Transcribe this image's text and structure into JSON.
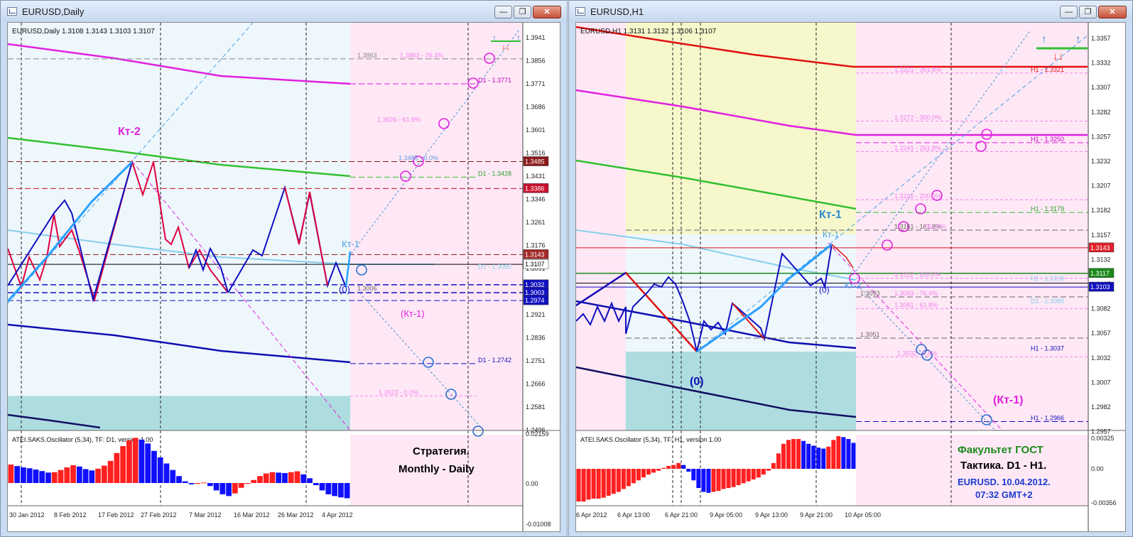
{
  "left": {
    "window_title": "EURUSD,Daily",
    "header": "EURUSD,Daily  1.3108 1.3143 1.3103 1.3107",
    "price_labels": [
      "1.3941",
      "1.3856",
      "1.3771",
      "1.3686",
      "1.3601",
      "1.3516",
      "1.3431",
      "1.3346",
      "1.3261",
      "1.3176",
      "1.3091",
      "1.3006",
      "1.2921",
      "1.2836",
      "1.2751",
      "1.2666",
      "1.2581",
      "1.2496"
    ],
    "price_tags": [
      {
        "text": "1.3485",
        "price": 1.3485,
        "color": "#8b1a1a"
      },
      {
        "text": "1.3386",
        "price": 1.3386,
        "color": "#c8102e"
      },
      {
        "text": "1.3143",
        "price": 1.3143,
        "color": "#a52a2a"
      },
      {
        "text": "1.3107",
        "price": 1.3107,
        "color": "#ffffff"
      },
      {
        "text": "1.3032",
        "price": 1.3032,
        "color": "#1010c0"
      },
      {
        "text": "1.3003",
        "price": 1.3003,
        "color": "#1010c0"
      },
      {
        "text": "1.2974",
        "price": 1.2974,
        "color": "#1010c0"
      }
    ],
    "level_texts": [
      {
        "text": "1.3863",
        "price": 1.3863,
        "color": "#888888"
      },
      {
        "text": "1.3863 - 76.4%",
        "price": 1.3863,
        "color": "#ee82ee"
      },
      {
        "text": "D1 - 1.3771",
        "price": 1.3771,
        "color": "#c000c0"
      },
      {
        "text": "1.3626 - 61.8%",
        "price": 1.3626,
        "color": "#ee82ee"
      },
      {
        "text": "1.3485 - 0.0%",
        "price": 1.3485,
        "color": "#5aa0e0"
      },
      {
        "text": "D1 - 1.3428",
        "price": 1.3428,
        "color": "#2ca02c"
      },
      {
        "text": "D1 - 1.3085",
        "price": 1.3085,
        "color": "#87ceeb"
      },
      {
        "text": "1.3006",
        "price": 1.3006,
        "color": "#666666"
      },
      {
        "text": "D1 - 1.2742",
        "price": 1.2742,
        "color": "#1010c0"
      },
      {
        "text": "1.2623 - 0.0%",
        "price": 1.2623,
        "color": "#ee82ee"
      }
    ],
    "annotations": [
      {
        "text": "Кт-2",
        "color": "#e020e0"
      },
      {
        "text": "Кт-1",
        "color": "#4aa0e0"
      },
      {
        "text": "(0)",
        "color": "#1010c0"
      },
      {
        "text": "(Кт-1)",
        "color": "#e020e0"
      }
    ],
    "time_labels": [
      "30 Jan 2012",
      "8 Feb 2012",
      "17 Feb 2012",
      "27 Feb 2012",
      "7 Mar 2012",
      "16 Mar 2012",
      "26 Mar 2012",
      "4 Apr 2012"
    ],
    "osc": {
      "title": "ATEI.SAKS.Oscillator (5,34), TF: D1, version 1.00",
      "labels": [
        "0.02159",
        "0.00",
        "-0.01008"
      ],
      "values": [
        0.0085,
        0.0078,
        0.0072,
        0.0068,
        0.0062,
        0.0055,
        0.0048,
        0.005,
        0.006,
        0.0072,
        0.0082,
        0.0076,
        0.0064,
        0.0058,
        0.0066,
        0.008,
        0.0102,
        0.0138,
        0.017,
        0.0196,
        0.0208,
        0.02,
        0.0182,
        0.0148,
        0.0118,
        0.009,
        0.006,
        0.0032,
        0.0008,
        -0.0006,
        -0.0004,
        0.0002,
        -0.0014,
        -0.0034,
        -0.0052,
        -0.006,
        -0.0048,
        -0.0022,
        -0.0004,
        0.0014,
        0.0032,
        0.0044,
        0.005,
        0.0048,
        0.0046,
        0.005,
        0.0054,
        0.004,
        0.0022,
        -0.001,
        -0.0034,
        -0.0052,
        -0.006,
        -0.0066,
        -0.007
      ]
    },
    "caption": [
      "Стратегия.",
      "Monthly - Daily"
    ],
    "markers": [
      "↑",
      "↓↓",
      "↑"
    ]
  },
  "right": {
    "window_title": "EURUSD,H1",
    "header": "EURUSD,H1  1.3131 1.3132 1.3106 1.3107",
    "price_labels": [
      "1.3357",
      "1.3332",
      "1.3307",
      "1.3282",
      "1.3257",
      "1.3232",
      "1.3207",
      "1.3182",
      "1.3157",
      "1.3132",
      "1.3107",
      "1.3082",
      "1.3057",
      "1.3032",
      "1.3007",
      "1.2982",
      "1.2957"
    ],
    "price_tags": [
      {
        "text": "1.3143",
        "price": 1.3143,
        "color": "#e0202a"
      },
      {
        "text": "1.3117",
        "price": 1.3117,
        "color": "#1a8a1a"
      },
      {
        "text": "1.3103",
        "price": 1.3103,
        "color": "#1010c0"
      }
    ],
    "level_texts": [
      {
        "text": "1.3321 - 361.8%",
        "price": 1.3321,
        "color": "#ee82ee"
      },
      {
        "text": "H1 - 1.3321",
        "price": 1.3321,
        "color": "#e01010"
      },
      {
        "text": "1.3272 - 300.0%",
        "price": 1.3272,
        "color": "#ee82ee"
      },
      {
        "text": "H1 - 1.3250",
        "price": 1.325,
        "color": "#c000c0"
      },
      {
        "text": "1.3241 - 261.8%",
        "price": 1.3241,
        "color": "#ee82ee"
      },
      {
        "text": "1.3192 - 200.0%",
        "price": 1.3192,
        "color": "#ee82ee"
      },
      {
        "text": "H1 - 1.3179",
        "price": 1.3179,
        "color": "#2ca02c"
      },
      {
        "text": "1.3161 - 161.8%",
        "price": 1.3161,
        "color": "#666666"
      },
      {
        "text": "161.8%",
        "price": 1.3161,
        "color": "#ee82ee"
      },
      {
        "text": "1.3112 - 100.0%",
        "price": 1.3112,
        "color": "#ee82ee"
      },
      {
        "text": "H1 - 1.3108",
        "price": 1.3108,
        "color": "#87ceeb"
      },
      {
        "text": "1.3093",
        "price": 1.3093,
        "color": "#666666"
      },
      {
        "text": "1.3093 - 76.4%",
        "price": 1.3093,
        "color": "#ee82ee"
      },
      {
        "text": "1.3081 - 61.8%",
        "price": 1.3081,
        "color": "#ee82ee"
      },
      {
        "text": "D1 - 1.3085",
        "price": 1.3085,
        "color": "#87ceeb"
      },
      {
        "text": "1.3051",
        "price": 1.3051,
        "color": "#666666"
      },
      {
        "text": "H1 - 1.3037",
        "price": 1.3037,
        "color": "#1010c0"
      },
      {
        "text": "1.3032 - 0.0%",
        "price": 1.3032,
        "color": "#ee82ee"
      },
      {
        "text": "H1 - 1.2966",
        "price": 1.2966,
        "color": "#1010c0"
      }
    ],
    "annotations": [
      {
        "text": "Кт-1",
        "color": "#2a8ad0"
      },
      {
        "text": "Кт-1",
        "color": "#4aa0e0"
      },
      {
        "text": "Кт-2",
        "color": "#4aa0e0"
      },
      {
        "text": "(0)",
        "color": "#1010c0"
      },
      {
        "text": "(0)",
        "color": "#1010c0"
      },
      {
        "text": "(Кт-1)",
        "color": "#e020e0"
      }
    ],
    "time_labels": [
      "6 Apr 2012",
      "6 Apr 13:00",
      "6 Apr 21:00",
      "9 Apr 05:00",
      "9 Apr 13:00",
      "9 Apr 21:00",
      "10 Apr 05:00"
    ],
    "osc": {
      "title": "ATEI.SAKS.Oscillator (5,34), TF: H1, version 1.00",
      "labels": [
        "0.00325",
        "0.00",
        "-0.00356"
      ],
      "values": [
        -0.0034,
        -0.0034,
        -0.0032,
        -0.0031,
        -0.0031,
        -0.003,
        -0.0028,
        -0.0026,
        -0.0024,
        -0.0021,
        -0.0018,
        -0.0015,
        -0.0012,
        -0.0009,
        -0.0006,
        -0.0004,
        -0.0002,
        0.0001,
        0.0003,
        0.0004,
        0.0006,
        0.0004,
        -0.0003,
        -0.0012,
        -0.002,
        -0.0024,
        -0.0025,
        -0.0024,
        -0.0023,
        -0.0021,
        -0.002,
        -0.0019,
        -0.0017,
        -0.0015,
        -0.0013,
        -0.0011,
        -0.0009,
        -0.0006,
        -0.0002,
        0.0006,
        0.0016,
        0.0026,
        0.003,
        0.0031,
        0.0031,
        0.0029,
        0.0026,
        0.0024,
        0.0022,
        0.0021,
        0.0023,
        0.003,
        0.0034,
        0.0033,
        0.0031,
        0.0027
      ]
    },
    "caption": [
      "Факультет ГОСТ",
      "Тактика. D1 - H1.",
      "EURUSD. 10.04.2012.",
      "07:32  GMT+2"
    ],
    "markers": [
      "↑",
      "↓↓",
      "↑"
    ]
  },
  "window_buttons": {
    "minimize": "—",
    "restore": "❐",
    "close": "✕"
  },
  "colors": {
    "up_bar": "#ff2020",
    "down_bar": "#1010ff",
    "zone_pink": "#ffe8f6",
    "zone_blue": "#eef7fc",
    "zone_yellow": "#f7f7cc",
    "zone_teal": "#aedde0"
  }
}
